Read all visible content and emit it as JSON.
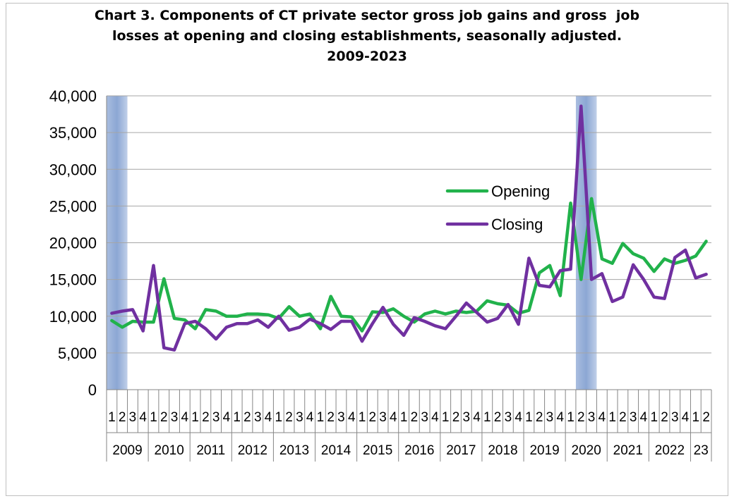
{
  "chart_data": {
    "type": "line",
    "title": [
      "Chart 3. Components of CT private sector gross job gains and gross  job",
      "losses at opening and closing establishments, seasonally adjusted.",
      "2009-2023"
    ],
    "ylim": [
      0,
      40000
    ],
    "yticks": [
      "0",
      "5,000",
      "10,000",
      "15,000",
      "20,000",
      "25,000",
      "30,000",
      "35,000",
      "40,000"
    ],
    "quarter_labels": [
      "1",
      "2",
      "3",
      "4",
      "1",
      "2",
      "3",
      "4",
      "1",
      "2",
      "3",
      "4",
      "1",
      "2",
      "3",
      "4",
      "1",
      "2",
      "3",
      "4",
      "1",
      "2",
      "3",
      "4",
      "1",
      "2",
      "3",
      "4",
      "1",
      "2",
      "3",
      "4",
      "1",
      "2",
      "3",
      "4",
      "1",
      "2",
      "3",
      "4",
      "1",
      "2",
      "3",
      "4",
      "1",
      "2",
      "3",
      "4",
      "1",
      "2",
      "3",
      "4",
      "1",
      "2",
      "3",
      "4",
      "1",
      "2"
    ],
    "year_labels": [
      "2009",
      "2010",
      "2011",
      "2012",
      "2013",
      "2014",
      "2015",
      "2016",
      "2017",
      "2018",
      "2019",
      "2020",
      "2021",
      "2022",
      "23"
    ],
    "recession_shading": [
      {
        "from_index": 0,
        "to_index": 1
      },
      {
        "from_index": 45,
        "to_index": 46
      }
    ],
    "legend_position": "right-middle",
    "grid": "horizontal",
    "series": [
      {
        "name": "Opening",
        "color": "#21b24b",
        "values": [
          9400,
          8500,
          9300,
          9200,
          9200,
          15100,
          9700,
          9500,
          8300,
          10900,
          10700,
          10000,
          10000,
          10300,
          10300,
          10200,
          9700,
          11300,
          10000,
          10300,
          8300,
          12700,
          10000,
          9900,
          8000,
          10600,
          10500,
          11000,
          10000,
          9200,
          10300,
          10700,
          10300,
          10700,
          10500,
          10700,
          12100,
          11700,
          11500,
          10400,
          10800,
          15900,
          16900,
          12800,
          25400,
          15000,
          26000,
          17800,
          17200,
          19900,
          18500,
          17900,
          16100,
          17800,
          17200,
          17600,
          18200,
          20200
        ]
      },
      {
        "name": "Closing",
        "color": "#7030a0",
        "values": [
          10400,
          10700,
          10900,
          8000,
          16900,
          5700,
          5400,
          9000,
          9300,
          8300,
          6900,
          8500,
          9000,
          9000,
          9500,
          8500,
          10000,
          8100,
          8500,
          9600,
          9000,
          8200,
          9300,
          9300,
          6600,
          9000,
          11200,
          8900,
          7400,
          9800,
          9300,
          8700,
          8300,
          10000,
          11800,
          10500,
          9200,
          9700,
          11600,
          8900,
          17900,
          14200,
          14000,
          16200,
          16400,
          38600,
          15000,
          15800,
          12000,
          12600,
          17000,
          15000,
          12600,
          12400,
          18000,
          19000,
          15200,
          15700
        ]
      }
    ]
  }
}
